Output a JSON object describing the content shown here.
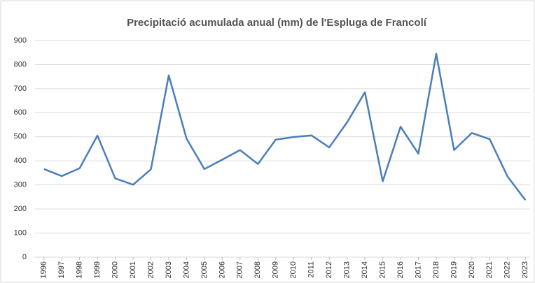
{
  "chart_data": {
    "type": "line",
    "title": "Precipitació acumulada anual (mm) de l'Espluga de Francolí",
    "categories": [
      "1996",
      "1997",
      "1998",
      "1999",
      "2000",
      "2001",
      "2002",
      "2003",
      "2004",
      "2005",
      "2006",
      "2007",
      "2008",
      "2009",
      "2010",
      "2011",
      "2012",
      "2013",
      "2014",
      "2015",
      "2016",
      "2017",
      "2018",
      "2019",
      "2020",
      "2021",
      "2022",
      "2023"
    ],
    "series": [
      {
        "name": "Precipitació",
        "color": "#4a7ebb",
        "values": [
          366,
          337,
          369,
          505,
          327,
          301,
          365,
          755,
          492,
          366,
          405,
          445,
          387,
          488,
          499,
          506,
          456,
          560,
          685,
          315,
          542,
          430,
          845,
          445,
          516,
          490,
          335,
          237
        ]
      }
    ],
    "ylim": [
      0,
      900
    ],
    "yticks": [
      0,
      100,
      200,
      300,
      400,
      500,
      600,
      700,
      800,
      900
    ],
    "grid": true
  }
}
